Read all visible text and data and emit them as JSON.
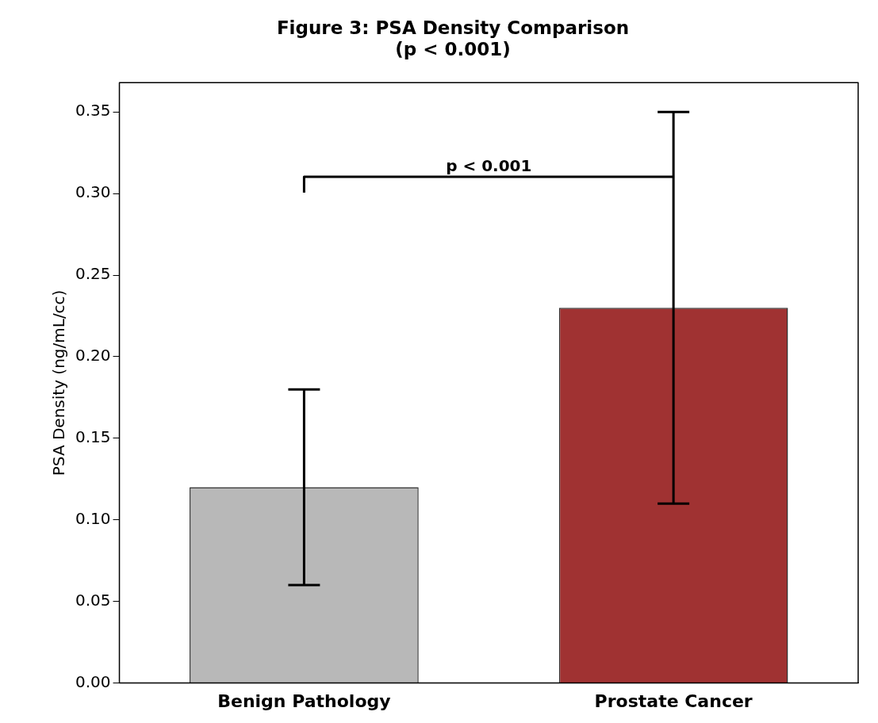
{
  "chart_data": {
    "type": "bar",
    "title": "Figure 3: PSA Density Comparison\n(p < 0.001)",
    "ylabel": "PSA Density (ng/mL/cc)",
    "categories": [
      "Benign Pathology",
      "Prostate Cancer"
    ],
    "values": [
      0.12,
      0.23
    ],
    "colors": [
      "#b8b8b8",
      "#a03232"
    ],
    "errors": [
      0.06,
      0.12
    ],
    "ylim": [
      0,
      0.368
    ],
    "yticks": [
      {
        "value": 0,
        "label": "0.00"
      },
      0.05,
      {
        "value": 0.1,
        "label": "0.10"
      },
      0.15,
      {
        "value": 0.2,
        "label": "0.20"
      },
      0.25,
      {
        "value": 0.3,
        "label": "0.30"
      },
      0.35
    ],
    "grid": false,
    "annotations": [
      "p < 0.001"
    ]
  }
}
